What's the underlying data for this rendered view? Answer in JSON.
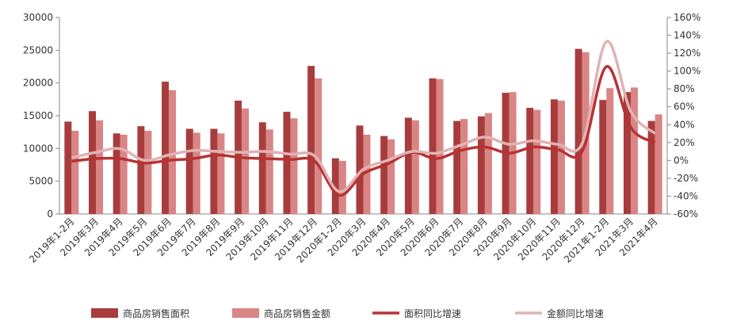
{
  "chart_data": {
    "type": "bar",
    "categories": [
      "2019年1-2月",
      "2019年3月",
      "2019年4月",
      "2019年5月",
      "2019年6月",
      "2019年7月",
      "2019年8月",
      "2019年9月",
      "2019年10月",
      "2019年11月",
      "2019年12月",
      "2020年1-2月",
      "2020年3月",
      "2020年4月",
      "2020年5月",
      "2020年6月",
      "2020年7月",
      "2020年8月",
      "2020年9月",
      "2020年10月",
      "2020年11月",
      "2020年12月",
      "2021年1-2月",
      "2021年3月",
      "2021年4月"
    ],
    "series": [
      {
        "name": "商品房销售面积",
        "kind": "bar",
        "axis": "left",
        "color": "#a83c3c",
        "values": [
          14100,
          15700,
          12300,
          13400,
          20200,
          13000,
          13000,
          17300,
          14000,
          15600,
          22600,
          8500,
          13500,
          11900,
          14700,
          20700,
          14200,
          14900,
          18500,
          16200,
          17500,
          25200,
          17400,
          18600,
          14200
        ]
      },
      {
        "name": "商品房销售金额",
        "kind": "bar",
        "axis": "left",
        "color": "#d98585",
        "values": [
          12700,
          14300,
          12100,
          12700,
          18900,
          12400,
          12300,
          16100,
          12900,
          14600,
          20700,
          8100,
          12100,
          11400,
          14300,
          20600,
          14500,
          15400,
          18600,
          15900,
          17300,
          24700,
          19200,
          19300,
          15200
        ]
      },
      {
        "name": "面积同比增速",
        "kind": "line",
        "axis": "right",
        "color": "#b83232",
        "values": [
          -1,
          2,
          2,
          -3,
          0,
          2,
          6,
          3,
          2,
          1,
          -1,
          -39,
          -15,
          -4,
          9,
          2,
          11,
          15,
          8,
          15,
          12,
          10,
          105,
          37,
          20
        ]
      },
      {
        "name": "金额同比增速",
        "kind": "line",
        "axis": "right",
        "color": "#e0b3b3",
        "values": [
          3,
          9,
          13,
          0,
          6,
          11,
          10,
          9,
          10,
          7,
          5,
          -35,
          -10,
          0,
          10,
          8,
          17,
          26,
          18,
          22,
          18,
          19,
          133,
          55,
          30
        ]
      }
    ],
    "y_left": {
      "min": 0,
      "max": 30000,
      "ticks": [
        "0",
        "5000",
        "10000",
        "15000",
        "20000",
        "25000",
        "30000"
      ]
    },
    "y_right": {
      "min": -60,
      "max": 160,
      "ticks": [
        "-60%",
        "-40%",
        "-20%",
        "0%",
        "20%",
        "40%",
        "60%",
        "80%",
        "100%",
        "120%",
        "140%",
        "160%"
      ]
    },
    "grid": false,
    "legend_position": "bottom"
  }
}
